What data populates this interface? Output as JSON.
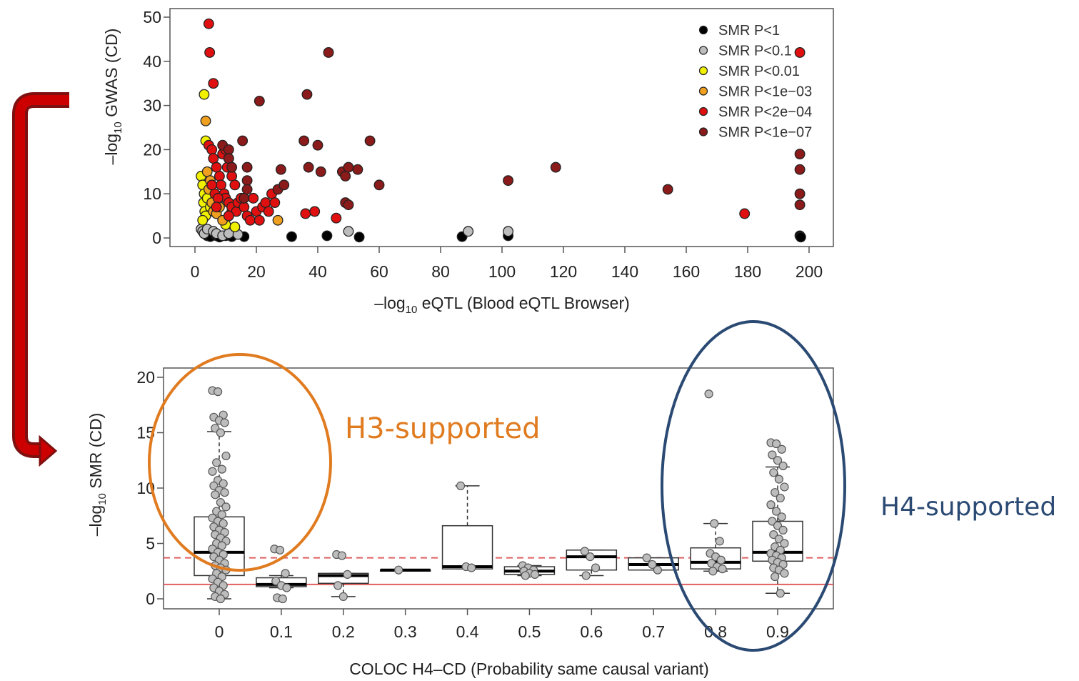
{
  "chart_data": [
    {
      "type": "scatter",
      "xlabel": "–log10 eQTL (Blood eQTL Browser)",
      "ylabel": "–log10 GWAS (CD)",
      "xlim": [
        0,
        200
      ],
      "ylim": [
        0,
        50
      ],
      "xticks": [
        0,
        20,
        40,
        60,
        80,
        100,
        120,
        140,
        160,
        180,
        200
      ],
      "yticks": [
        0,
        10,
        20,
        30,
        40,
        50
      ],
      "legend_position": "top-right",
      "series": [
        {
          "name": "SMR P<1",
          "color": "#000000",
          "points": [
            [
              3,
              1
            ],
            [
              4,
              0.5
            ],
            [
              5,
              0.3
            ],
            [
              7,
              0.5
            ],
            [
              8,
              0.2
            ],
            [
              10,
              0.5
            ],
            [
              12,
              0.3
            ],
            [
              16,
              0.3
            ],
            [
              31.5,
              0.3
            ],
            [
              43,
              0.5
            ],
            [
              53.5,
              0.2
            ],
            [
              87,
              0.3
            ],
            [
              102,
              0.5
            ],
            [
              197,
              0.5
            ],
            [
              197.3,
              0.2
            ]
          ]
        },
        {
          "name": "SMR P<0.1",
          "color": "#bdbdbd",
          "points": [
            [
              2,
              2
            ],
            [
              2.5,
              1.5
            ],
            [
              3,
              1
            ],
            [
              4,
              2
            ],
            [
              6,
              1.5
            ],
            [
              7,
              1
            ],
            [
              9,
              0.5
            ],
            [
              11,
              1
            ],
            [
              14,
              0.8
            ],
            [
              50,
              1.5
            ],
            [
              89,
              1.5
            ],
            [
              102,
              1.5
            ]
          ]
        },
        {
          "name": "SMR P<0.01",
          "color": "#f0f000",
          "points": [
            [
              2,
              14
            ],
            [
              2.5,
              12
            ],
            [
              3,
              10
            ],
            [
              2.8,
              8
            ],
            [
              3.2,
              6
            ],
            [
              3.5,
              5
            ],
            [
              4,
              9
            ],
            [
              2.5,
              4
            ],
            [
              5,
              7
            ],
            [
              3,
              32.5
            ],
            [
              3.5,
              22
            ],
            [
              10,
              3
            ],
            [
              11,
              5
            ],
            [
              13,
              2.5
            ]
          ]
        },
        {
          "name": "SMR P<1e−03",
          "color": "#f0a020",
          "points": [
            [
              3.5,
              26.5
            ],
            [
              4,
              15
            ],
            [
              5,
              13
            ],
            [
              4.5,
              11
            ],
            [
              5.5,
              8
            ],
            [
              6,
              6
            ],
            [
              7,
              5.5
            ],
            [
              8,
              7
            ],
            [
              9,
              4
            ],
            [
              12,
              6
            ],
            [
              13,
              7
            ],
            [
              27,
              4
            ]
          ]
        },
        {
          "name": "SMR P<2e−04",
          "color": "#e01010",
          "points": [
            [
              4.5,
              48.5
            ],
            [
              4.8,
              42
            ],
            [
              6,
              35
            ],
            [
              4.5,
              21
            ],
            [
              5.5,
              20
            ],
            [
              6,
              18
            ],
            [
              7,
              16
            ],
            [
              8,
              14
            ],
            [
              9,
              19
            ],
            [
              10,
              20
            ],
            [
              11,
              18
            ],
            [
              10.5,
              16
            ],
            [
              12,
              14
            ],
            [
              13,
              12
            ],
            [
              8.5,
              12
            ],
            [
              9.5,
              10
            ],
            [
              10,
              9
            ],
            [
              11,
              8
            ],
            [
              12,
              7
            ],
            [
              13.5,
              6
            ],
            [
              14,
              8
            ],
            [
              15,
              9
            ],
            [
              16,
              7
            ],
            [
              17,
              5
            ],
            [
              18,
              4
            ],
            [
              19,
              9
            ],
            [
              20,
              6
            ],
            [
              21,
              4
            ],
            [
              22,
              7
            ],
            [
              23,
              8
            ],
            [
              24,
              6
            ],
            [
              25,
              10
            ],
            [
              26,
              8
            ],
            [
              6.5,
              10
            ],
            [
              7.5,
              9
            ],
            [
              5.5,
              12
            ],
            [
              7,
              7
            ],
            [
              11,
              5
            ],
            [
              36,
              5.5
            ],
            [
              39,
              6
            ],
            [
              46,
              4.5
            ],
            [
              179,
              5.5
            ],
            [
              197,
              42
            ]
          ]
        },
        {
          "name": "SMR P<1e−07",
          "color": "#8b1a1a",
          "points": [
            [
              9,
              21
            ],
            [
              11,
              20
            ],
            [
              11,
              18
            ],
            [
              12,
              16
            ],
            [
              15.5,
              22
            ],
            [
              17,
              16
            ],
            [
              16,
              9
            ],
            [
              17,
              13
            ],
            [
              17,
              11
            ],
            [
              21,
              31
            ],
            [
              27,
              11
            ],
            [
              28,
              15.5
            ],
            [
              29,
              12
            ],
            [
              35.5,
              22
            ],
            [
              36.5,
              32.5
            ],
            [
              37,
              16
            ],
            [
              40,
              21
            ],
            [
              41,
              15
            ],
            [
              43.5,
              42
            ],
            [
              48,
              15
            ],
            [
              49,
              14
            ],
            [
              50,
              16
            ],
            [
              53,
              15.5
            ],
            [
              57,
              22
            ],
            [
              60,
              12
            ],
            [
              49,
              8
            ],
            [
              50,
              7.5
            ],
            [
              102,
              13
            ],
            [
              117.5,
              16
            ],
            [
              154,
              11
            ],
            [
              197,
              19
            ],
            [
              197,
              15.5
            ],
            [
              197,
              10
            ],
            [
              197,
              7.5
            ]
          ]
        }
      ]
    },
    {
      "type": "box",
      "xlabel": "COLOC H4–CD (Probability same causal variant)",
      "ylabel": "–log10 SMR (CD)",
      "ylim": [
        0,
        20
      ],
      "yticks": [
        0,
        5,
        10,
        15,
        20
      ],
      "categories": [
        "0",
        "0.1",
        "0.2",
        "0.3",
        "0.4",
        "0.5",
        "0.6",
        "0.7",
        "0.8",
        "0.9"
      ],
      "reference_lines": [
        {
          "y": 3.7,
          "style": "dashed",
          "color": "#e06060"
        },
        {
          "y": 1.3,
          "style": "solid",
          "color": "#e06060"
        }
      ],
      "boxes": [
        {
          "category": "0",
          "whisker_low": 0,
          "q1": 2.1,
          "median": 4.2,
          "q3": 7.4,
          "whisker_high": 15.1,
          "points": [
            18.8,
            18.7,
            16.6,
            16.4,
            16.1,
            15.9,
            15.4,
            15.0,
            12.9,
            12.3,
            11.7,
            11.5,
            10.7,
            10.4,
            10.2,
            9.8,
            9.6,
            9.4,
            8.7,
            8.3,
            7.9,
            7.6,
            7.3,
            7.0,
            6.8,
            6.5,
            6.2,
            6.0,
            5.8,
            5.5,
            5.2,
            5.0,
            4.8,
            4.5,
            4.2,
            4.0,
            3.8,
            3.5,
            3.2,
            3.0,
            2.8,
            2.6,
            2.3,
            2.0,
            1.8,
            1.5,
            1.2,
            1.0,
            0.7,
            0.4,
            0.2,
            0.0
          ]
        },
        {
          "category": "0.1",
          "whisker_low": 1.0,
          "q1": 1.1,
          "median": 1.3,
          "q3": 1.9,
          "whisker_high": 2.1,
          "points": [
            4.5,
            4.4,
            2.3,
            1.6,
            1.2,
            1.0,
            0.1,
            0.0
          ]
        },
        {
          "category": "0.2",
          "whisker_low": 0.2,
          "q1": 1.4,
          "median": 2.1,
          "q3": 2.3,
          "whisker_high": 2.3,
          "points": [
            4.0,
            3.9,
            2.2,
            1.2,
            0.2
          ]
        },
        {
          "category": "0.3",
          "whisker_low": 2.5,
          "q1": 2.5,
          "median": 2.6,
          "q3": 2.6,
          "whisker_high": 2.6,
          "points": [
            2.6
          ]
        },
        {
          "category": "0.4",
          "whisker_low": 2.7,
          "q1": 2.7,
          "median": 2.9,
          "q3": 6.6,
          "whisker_high": 10.2,
          "points": [
            10.2,
            2.9,
            2.8
          ]
        },
        {
          "category": "0.5",
          "whisker_low": 2.1,
          "q1": 2.2,
          "median": 2.5,
          "q3": 2.9,
          "whisker_high": 3.0,
          "points": [
            3.0,
            2.8,
            2.6,
            2.5,
            2.3,
            2.2,
            2.1
          ]
        },
        {
          "category": "0.6",
          "whisker_low": 2.1,
          "q1": 2.6,
          "median": 3.8,
          "q3": 4.4,
          "whisker_high": 4.4,
          "points": [
            4.3,
            3.8,
            2.8,
            2.1
          ]
        },
        {
          "category": "0.7",
          "whisker_low": 2.6,
          "q1": 2.6,
          "median": 3.1,
          "q3": 3.7,
          "whisker_high": 3.7,
          "points": [
            3.7,
            3.1,
            2.6
          ]
        },
        {
          "category": "0.8",
          "whisker_low": 2.5,
          "q1": 2.7,
          "median": 3.3,
          "q3": 4.6,
          "whisker_high": 6.8,
          "points": [
            18.5,
            6.8,
            5.2,
            4.1,
            3.8,
            3.5,
            3.2,
            2.9,
            2.7,
            2.5
          ]
        },
        {
          "category": "0.9",
          "whisker_low": 0.5,
          "q1": 3.4,
          "median": 4.2,
          "q3": 7.0,
          "whisker_high": 11.9,
          "points": [
            14.1,
            14.0,
            13.5,
            13.0,
            12.5,
            12.0,
            11.4,
            10.8,
            10.1,
            9.6,
            9.1,
            8.5,
            7.9,
            7.4,
            7.0,
            6.6,
            6.2,
            5.8,
            5.4,
            5.0,
            4.7,
            4.4,
            4.1,
            3.9,
            3.7,
            3.5,
            3.3,
            3.1,
            2.8,
            2.6,
            2.3,
            2.0,
            0.5
          ]
        }
      ]
    }
  ],
  "annotations": {
    "h3_label": "H3-supported",
    "h4_label": "H4-supported",
    "h3_color": "#e07b20",
    "h4_color": "#2b4a73",
    "arrow_color": "#c00000"
  }
}
